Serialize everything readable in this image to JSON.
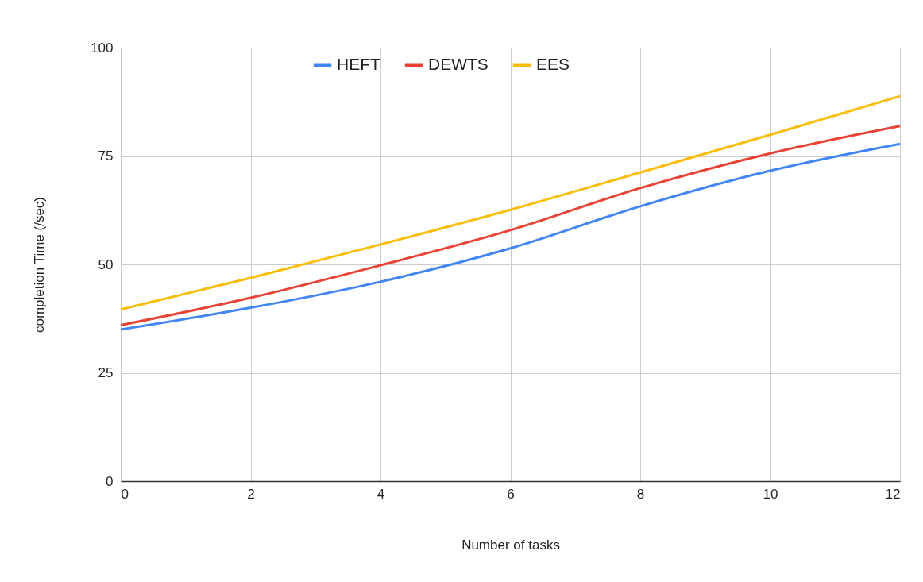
{
  "chart_data": {
    "type": "line",
    "xlabel": "Number of tasks",
    "ylabel": "completion Time (/sec)",
    "x": [
      0,
      2,
      4,
      6,
      8,
      10,
      12
    ],
    "series": [
      {
        "name": "HEFT",
        "color": "#4285f4",
        "values": [
          35,
          40,
          46,
          53.7,
          63.4,
          71.6,
          77.8
        ]
      },
      {
        "name": "DEWTS",
        "color": "#ea4335",
        "values": [
          36,
          42.3,
          49.8,
          57.9,
          67.6,
          75.6,
          81.9
        ]
      },
      {
        "name": "EES",
        "color": "#fbbc04",
        "values": [
          39.6,
          46.9,
          54.6,
          62.6,
          71.2,
          79.9,
          88.8
        ]
      }
    ],
    "xlim": [
      0,
      12
    ],
    "xticks": [
      0,
      2,
      4,
      6,
      8,
      10,
      12
    ],
    "ylim": [
      0,
      100
    ],
    "yticks": [
      0,
      25,
      50,
      75,
      100
    ],
    "grid": true,
    "legend": "top",
    "marker": "none",
    "line_style": "solid"
  }
}
